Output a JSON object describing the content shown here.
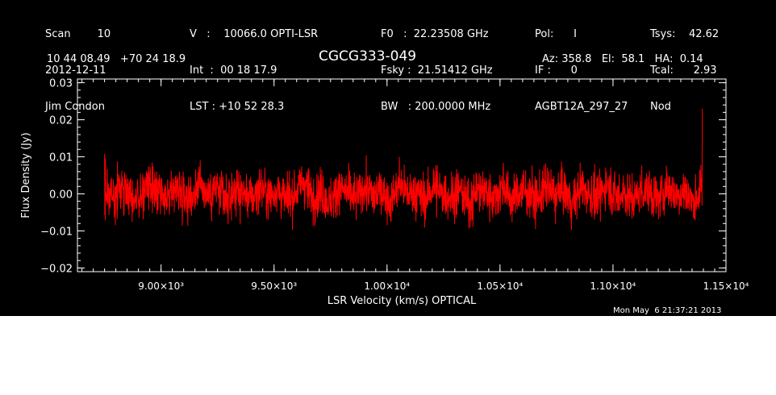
{
  "header": {
    "col1": [
      "Scan        10",
      "2012-12-11",
      "Jim Condon"
    ],
    "col2": [
      "V   :    10066.0 OPTI-LSR",
      "Int  :  00 18 17.9",
      "LST : +10 52 28.3"
    ],
    "col3": [
      "F0   :  22.23508 GHz",
      "Fsky :  21.51412 GHz",
      "BW   : 200.0000 MHz"
    ],
    "col4": [
      "Pol:      I",
      "IF :      0",
      "AGBT12A_297_27"
    ],
    "col5": [
      "Tsys:    42.62",
      "Tcal:      2.93",
      "Nod"
    ],
    "coords": "10 44 08.49   +70 24 18.9",
    "source": "CGCG333-049",
    "pointing": "Az: 358.8   El:  58.1   HA:  0.14",
    "timestamp": "Mon May  6 21:37:21 2013"
  },
  "colors": {
    "background": "#000000",
    "axes": "#ffffff",
    "trace": "#ff0000"
  },
  "chart_data": {
    "type": "line",
    "title": "CGCG333-049",
    "xlabel": "LSR Velocity (km/s) OPTICAL",
    "ylabel": "Flux Density (Jy)",
    "xlim": [
      8630,
      11500
    ],
    "ylim": [
      -0.021,
      0.031
    ],
    "xticks": [
      9000,
      9500,
      10000,
      10500,
      11000,
      11500
    ],
    "xtick_labels": [
      "9.00×10³",
      "9.50×10³",
      "1.00×10⁴",
      "1.05×10⁴",
      "1.10×10⁴",
      "1.15×10⁴"
    ],
    "yticks": [
      -0.02,
      -0.01,
      0.0,
      0.01,
      0.02,
      0.03
    ],
    "ytick_labels": [
      "−0.02",
      "−0.01",
      "0.00",
      "0.01",
      "0.02",
      "0.03"
    ],
    "grid": false,
    "series": [
      {
        "x_start": 8750,
        "x_end": 11395,
        "noise_rms": 0.0042,
        "baseline": 0.0,
        "values": [
          0.0022,
          -0.0031,
          0.0058,
          0.0012,
          -0.0047,
          0.0071,
          0.0003,
          -0.0062,
          0.0039,
          0.0015,
          -0.0024,
          0.0085,
          -0.0011,
          0.0046,
          -0.0073,
          0.0028,
          0.0009,
          -0.0039,
          0.0064,
          -0.0018,
          0.0033,
          -0.0055,
          0.0011,
          0.0092,
          -0.0028,
          0.0017,
          -0.0081,
          0.0044,
          0.0006,
          -0.0036,
          0.0052,
          -0.0014,
          0.0027,
          -0.0066,
          0.0078,
          -0.0003,
          0.0019,
          -0.0048,
          0.0061,
          0.0002,
          -0.0022,
          0.0037,
          -0.0095,
          0.0041,
          0.0013,
          -0.0029,
          0.0069,
          -0.0052,
          0.0024,
          0.0008,
          -0.0041,
          0.0056,
          -0.0017,
          0.0031,
          -0.0074,
          0.0049,
          0.0004,
          -0.0033,
          0.0087,
          -0.0021,
          0.0015,
          -0.0058,
          0.0036,
          0.001,
          -0.0045,
          0.0066,
          -0.0009,
          0.0026,
          -0.0069,
          0.0042
        ]
      }
    ]
  }
}
